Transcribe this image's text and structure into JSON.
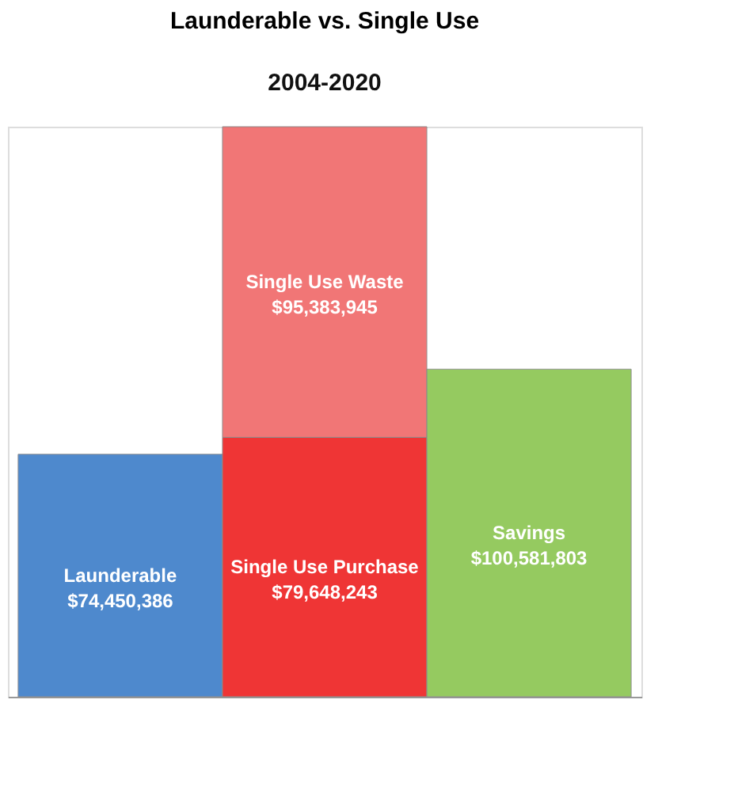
{
  "chart_data": {
    "type": "bar",
    "title": "Launderable vs. Single Use",
    "subtitle": "2004-2020",
    "categories": [
      null,
      null,
      null
    ],
    "stacked": true,
    "legend": false,
    "grid": false,
    "tick_labels": false,
    "series": [
      {
        "name": "Launderable",
        "color": "#3f7fc9",
        "values": [
          74450386,
          null,
          null
        ],
        "value_labels": [
          "$74,450,386",
          null,
          null
        ]
      },
      {
        "name": "Single Use Purchase",
        "color": "#ee2424",
        "values": [
          null,
          79648243,
          null
        ],
        "value_labels": [
          null,
          "$79,648,243",
          null
        ]
      },
      {
        "name": "Single Use Waste",
        "color": "#f06b6b",
        "values": [
          null,
          95383945,
          null
        ],
        "value_labels": [
          null,
          "$95,383,945",
          null
        ]
      },
      {
        "name": "Savings",
        "color": "#8dc653",
        "values": [
          null,
          null,
          100581803
        ],
        "value_labels": [
          null,
          null,
          "$100,581,803"
        ]
      }
    ]
  }
}
